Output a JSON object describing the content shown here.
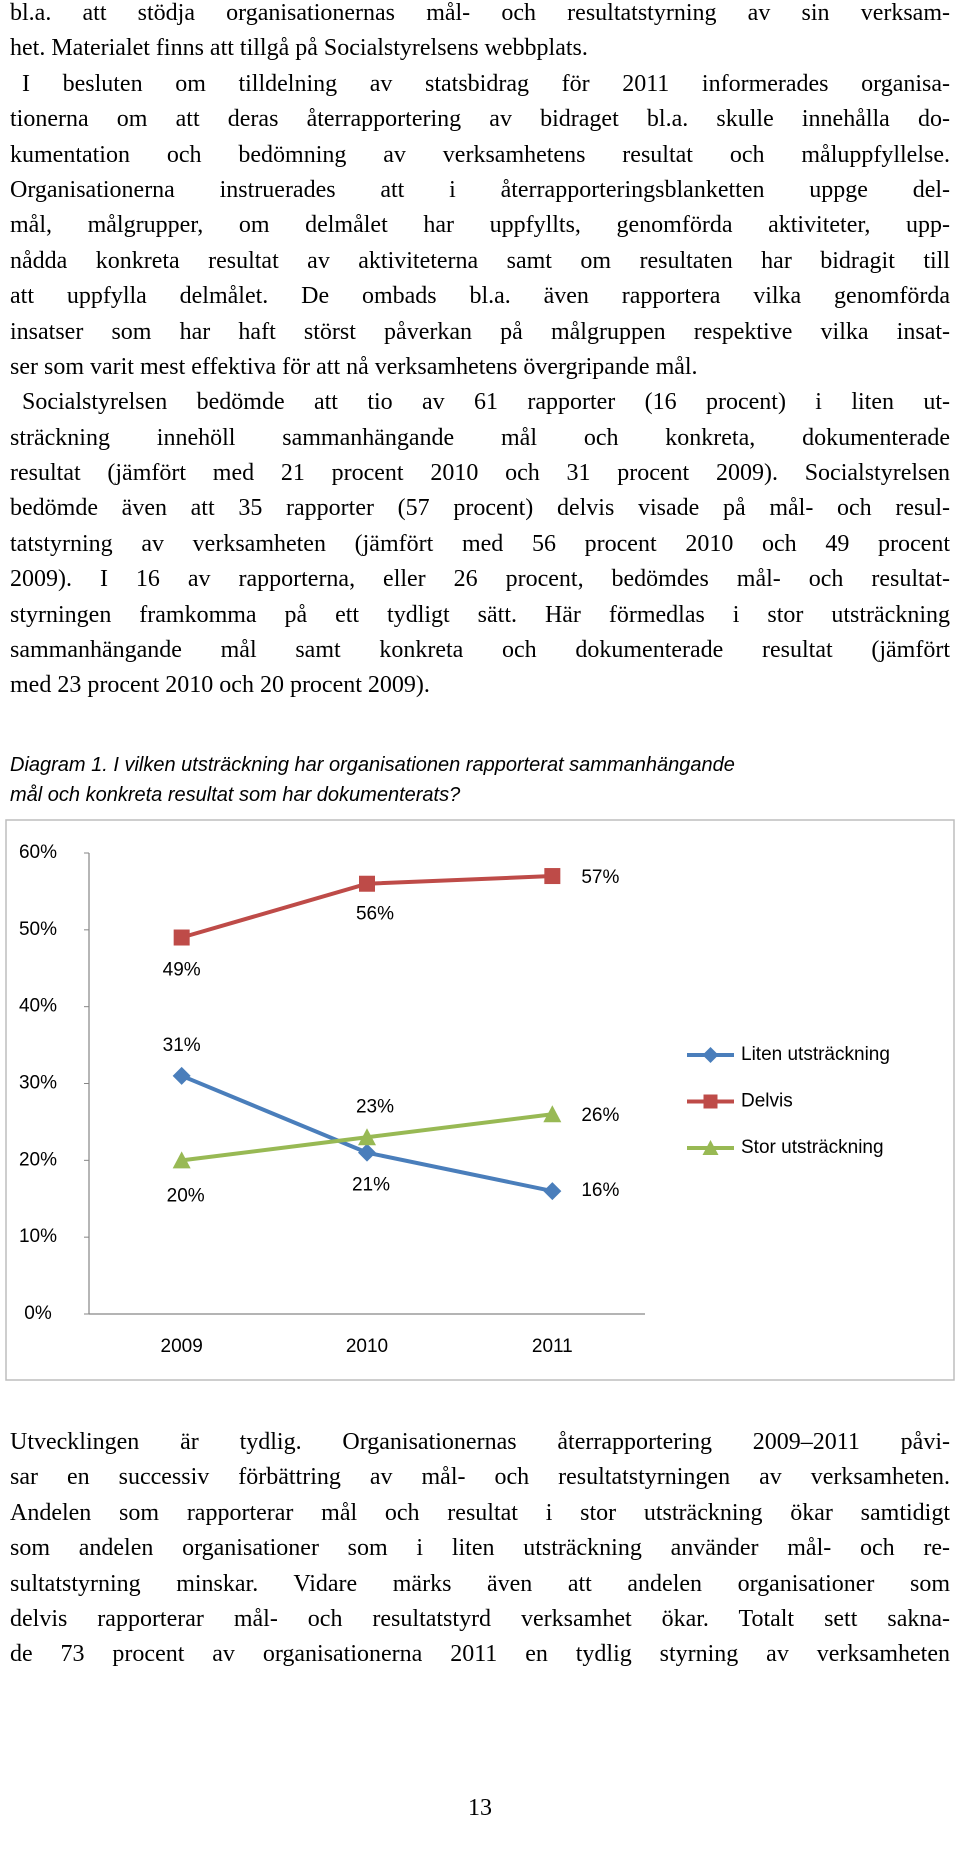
{
  "text_before": [
    [
      "bl.a. att stödja organisationernas mål- och resultatstyrning av sin verksam-",
      "het. Materialet finns att tillgå på Socialstyrelsens webbplats."
    ],
    [
      "I besluten om tilldelning av statsbidrag för 2011 informerades organisa-",
      "tionerna om att deras återrapportering av bidraget bl.a. skulle innehålla do-",
      "kumentation och bedömning av verksamhetens resultat och måluppfyllelse.",
      "Organisationerna instruerades att i återrapporteringsblanketten uppge del-",
      "mål, målgrupper, om delmålet har uppfyllts, genomförda aktiviteter, upp-",
      "nådda konkreta resultat av aktiviteterna samt om resultaten har bidragit till",
      "att uppfylla delmålet. De ombads bl.a. även rapportera vilka genomförda",
      "insatser som har haft störst påverkan på målgruppen respektive vilka insat-",
      "ser som varit mest effektiva för att nå verksamhetens övergripande mål."
    ],
    [
      "Socialstyrelsen bedömde att tio av 61 rapporter (16 procent) i liten ut-",
      "sträckning innehöll sammanhängande mål och konkreta, dokumenterade",
      "resultat (jämfört med 21 procent 2010 och 31 procent 2009). Socialstyrelsen",
      "bedömde även att 35 rapporter (57 procent) delvis visade på mål- och resul-",
      "tatstyrning av verksamheten (jämfört med 56 procent 2010 och 49 procent",
      "2009). I 16 av rapporterna, eller 26 procent, bedömdes mål- och resultat-",
      "styrningen framkomma på ett tydligt sätt. Här förmedlas i stor utsträckning",
      "sammanhängande mål samt konkreta och dokumenterade resultat (jämfört",
      "med 23 procent 2010 och 20 procent 2009)."
    ]
  ],
  "caption": [
    "Diagram 1. I vilken utsträckning har organisationen rapporterat sammanhängande",
    "mål och konkreta resultat som har dokumenterats?"
  ],
  "chart_data": {
    "type": "line",
    "categories": [
      "2009",
      "2010",
      "2011"
    ],
    "series": [
      {
        "name": "Liten utsträckning",
        "color": "#4a7ebb",
        "marker": "diamond",
        "values": [
          31,
          21,
          16
        ],
        "value_labels": [
          "31%",
          "21%",
          "16%"
        ]
      },
      {
        "name": "Delvis",
        "color": "#be4b48",
        "marker": "square",
        "values": [
          49,
          56,
          57
        ],
        "value_labels": [
          "49%",
          "56%",
          "57%"
        ]
      },
      {
        "name": "Stor utsträckning",
        "color": "#98b954",
        "marker": "triangle",
        "values": [
          20,
          23,
          26
        ],
        "value_labels": [
          "20%",
          "23%",
          "26%"
        ]
      }
    ],
    "ylim": [
      0,
      60
    ],
    "yticks": [
      {
        "value": 0,
        "label": "0%"
      },
      {
        "value": 10,
        "label": "10%"
      },
      {
        "value": 20,
        "label": "20%"
      },
      {
        "value": 30,
        "label": "30%"
      },
      {
        "value": 40,
        "label": "40%"
      },
      {
        "value": 50,
        "label": "50%"
      },
      {
        "value": 60,
        "label": "60%"
      }
    ],
    "grid": false,
    "legend": "right"
  },
  "text_after": [
    [
      "Utvecklingen är tydlig. Organisationernas återrapportering 2009–2011 påvi-",
      "sar en successiv förbättring av mål- och resultatstyrningen av verksamheten.",
      "Andelen som rapporterar mål och resultat i stor utsträckning ökar samtidigt",
      "som andelen organisationer som i liten utsträckning använder mål- och re-",
      "sultatstyrning minskar. Vidare märks även att andelen organisationer som",
      "delvis rapporterar mål- och resultatstyrd verksamhet ökar. Totalt sett sakna-",
      "de 73 procent av organisationerna 2011 en tydlig styrning av verksamheten"
    ]
  ],
  "page_number": "13"
}
